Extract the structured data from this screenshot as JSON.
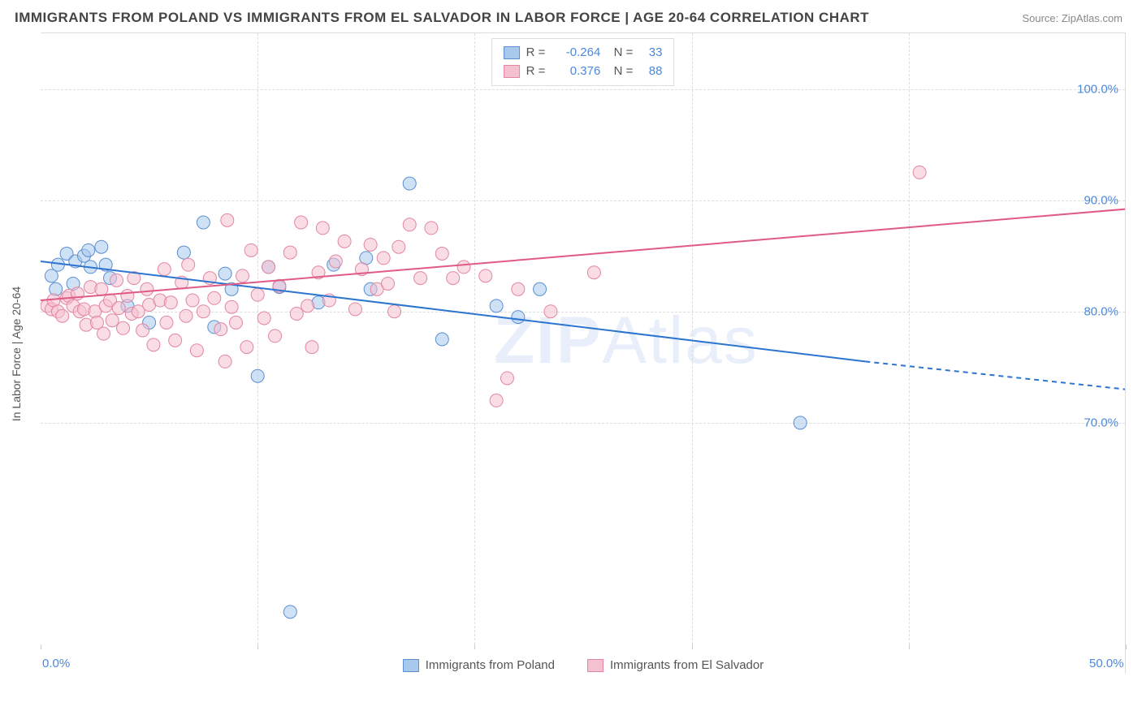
{
  "title": "IMMIGRANTS FROM POLAND VS IMMIGRANTS FROM EL SALVADOR IN LABOR FORCE | AGE 20-64 CORRELATION CHART",
  "source": "Source: ZipAtlas.com",
  "watermark": {
    "prefix": "ZIP",
    "suffix": "Atlas"
  },
  "chart": {
    "type": "scatter",
    "background_color": "#ffffff",
    "grid_color": "#dddddd",
    "grid_dash": "4,4",
    "xlim": [
      0,
      50
    ],
    "ylim": [
      50,
      105
    ],
    "xticks": [
      0,
      10,
      20,
      30,
      40,
      50
    ],
    "xtick_labels": [
      "0.0%",
      "",
      "",
      "",
      "",
      "50.0%"
    ],
    "yticks": [
      70,
      80,
      90,
      100
    ],
    "ytick_labels": [
      "70.0%",
      "80.0%",
      "90.0%",
      "100.0%"
    ],
    "ylabel": "In Labor Force | Age 20-64",
    "ylabel_fontsize": 14,
    "axis_label_color": "#4d88d8",
    "marker_radius": 8,
    "marker_opacity": 0.55,
    "series": [
      {
        "name": "Immigrants from Poland",
        "color_fill": "#a8c8ec",
        "color_stroke": "#5b8fd0",
        "R": "-0.264",
        "N": "33",
        "trend": {
          "x1": 0,
          "y1": 84.5,
          "x2": 38,
          "y2": 75.5,
          "x2_dash": 50,
          "y2_dash": 73.0,
          "color": "#2b74d0",
          "width": 2
        },
        "points": [
          [
            0.5,
            83.2
          ],
          [
            0.7,
            82.0
          ],
          [
            0.8,
            84.2
          ],
          [
            1.2,
            85.2
          ],
          [
            1.5,
            82.5
          ],
          [
            1.6,
            84.5
          ],
          [
            2.0,
            85.0
          ],
          [
            2.2,
            85.5
          ],
          [
            2.3,
            84.0
          ],
          [
            2.8,
            85.8
          ],
          [
            3.0,
            84.2
          ],
          [
            3.2,
            83.0
          ],
          [
            4.0,
            80.5
          ],
          [
            5.0,
            79.0
          ],
          [
            6.6,
            85.3
          ],
          [
            7.5,
            88.0
          ],
          [
            8.0,
            78.6
          ],
          [
            8.5,
            83.4
          ],
          [
            8.8,
            82.0
          ],
          [
            10.5,
            84.0
          ],
          [
            10.0,
            74.2
          ],
          [
            11.0,
            82.2
          ],
          [
            11.5,
            53.0
          ],
          [
            12.8,
            80.8
          ],
          [
            13.5,
            84.2
          ],
          [
            15.0,
            84.8
          ],
          [
            15.2,
            82.0
          ],
          [
            17.0,
            91.5
          ],
          [
            18.5,
            77.5
          ],
          [
            21.0,
            80.5
          ],
          [
            22.0,
            79.5
          ],
          [
            23.0,
            82.0
          ],
          [
            35.0,
            70.0
          ]
        ]
      },
      {
        "name": "Immigrants from El Salvador",
        "color_fill": "#f5c0cf",
        "color_stroke": "#e286a0",
        "R": "0.376",
        "N": "88",
        "trend": {
          "x1": 0,
          "y1": 81.0,
          "x2": 50,
          "y2": 89.2,
          "color": "#e05b84",
          "width": 2
        },
        "points": [
          [
            0.3,
            80.5
          ],
          [
            0.5,
            80.2
          ],
          [
            0.6,
            81.0
          ],
          [
            0.8,
            80.0
          ],
          [
            1.0,
            79.6
          ],
          [
            1.2,
            81.2
          ],
          [
            1.3,
            81.4
          ],
          [
            1.5,
            80.5
          ],
          [
            1.7,
            81.6
          ],
          [
            1.8,
            80.0
          ],
          [
            2.0,
            80.2
          ],
          [
            2.1,
            78.8
          ],
          [
            2.3,
            82.2
          ],
          [
            2.5,
            80.0
          ],
          [
            2.6,
            79.0
          ],
          [
            2.8,
            82.0
          ],
          [
            2.9,
            78.0
          ],
          [
            3.0,
            80.5
          ],
          [
            3.2,
            81.0
          ],
          [
            3.3,
            79.2
          ],
          [
            3.5,
            82.8
          ],
          [
            3.6,
            80.3
          ],
          [
            3.8,
            78.5
          ],
          [
            4.0,
            81.4
          ],
          [
            4.2,
            79.8
          ],
          [
            4.3,
            83.0
          ],
          [
            4.5,
            80.0
          ],
          [
            4.7,
            78.3
          ],
          [
            4.9,
            82.0
          ],
          [
            5.0,
            80.6
          ],
          [
            5.2,
            77.0
          ],
          [
            5.5,
            81.0
          ],
          [
            5.7,
            83.8
          ],
          [
            5.8,
            79.0
          ],
          [
            6.0,
            80.8
          ],
          [
            6.2,
            77.4
          ],
          [
            6.5,
            82.6
          ],
          [
            6.7,
            79.6
          ],
          [
            6.8,
            84.2
          ],
          [
            7.0,
            81.0
          ],
          [
            7.2,
            76.5
          ],
          [
            7.5,
            80.0
          ],
          [
            7.8,
            83.0
          ],
          [
            8.0,
            81.2
          ],
          [
            8.3,
            78.4
          ],
          [
            8.5,
            75.5
          ],
          [
            8.6,
            88.2
          ],
          [
            8.8,
            80.4
          ],
          [
            9.0,
            79.0
          ],
          [
            9.3,
            83.2
          ],
          [
            9.5,
            76.8
          ],
          [
            9.7,
            85.5
          ],
          [
            10.0,
            81.5
          ],
          [
            10.3,
            79.4
          ],
          [
            10.5,
            84.0
          ],
          [
            10.8,
            77.8
          ],
          [
            11.0,
            82.3
          ],
          [
            11.5,
            85.3
          ],
          [
            11.8,
            79.8
          ],
          [
            12.0,
            88.0
          ],
          [
            12.3,
            80.5
          ],
          [
            12.5,
            76.8
          ],
          [
            12.8,
            83.5
          ],
          [
            13.0,
            87.5
          ],
          [
            13.3,
            81.0
          ],
          [
            13.6,
            84.5
          ],
          [
            14.0,
            86.3
          ],
          [
            14.5,
            80.2
          ],
          [
            14.8,
            83.8
          ],
          [
            15.2,
            86.0
          ],
          [
            15.5,
            82.0
          ],
          [
            15.8,
            84.8
          ],
          [
            16.0,
            82.5
          ],
          [
            16.5,
            85.8
          ],
          [
            17.0,
            87.8
          ],
          [
            17.5,
            83.0
          ],
          [
            18.0,
            87.5
          ],
          [
            18.5,
            85.2
          ],
          [
            19.0,
            83.0
          ],
          [
            19.5,
            84.0
          ],
          [
            20.5,
            83.2
          ],
          [
            21.0,
            72.0
          ],
          [
            21.5,
            74.0
          ],
          [
            22.0,
            82.0
          ],
          [
            23.5,
            80.0
          ],
          [
            25.5,
            83.5
          ],
          [
            40.5,
            92.5
          ],
          [
            16.3,
            80.0
          ]
        ]
      }
    ]
  },
  "bottom_legend": [
    {
      "label": "Immigrants from Poland",
      "fill": "#a8c8ec",
      "stroke": "#5b8fd0"
    },
    {
      "label": "Immigrants from El Salvador",
      "fill": "#f5c0cf",
      "stroke": "#e286a0"
    }
  ]
}
